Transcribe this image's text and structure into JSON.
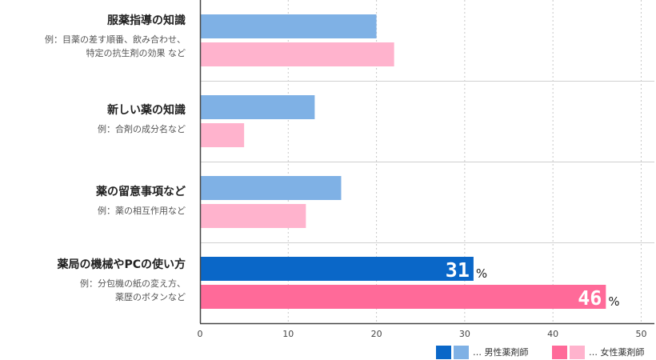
{
  "chart_data": {
    "type": "bar",
    "orientation": "horizontal",
    "categories": [
      {
        "title": "服薬指導の知識",
        "subtitle": "例：目薬の差す順番、飲み合わせ、\n特定の抗生剤の効果 など",
        "male": 20,
        "female": 22,
        "highlight": false
      },
      {
        "title": "新しい薬の知識",
        "subtitle": "例：合剤の成分名など",
        "male": 13,
        "female": 5,
        "highlight": false
      },
      {
        "title": "薬の留意事項など",
        "subtitle": "例：薬の相互作用など",
        "male": 16,
        "female": 12,
        "highlight": false
      },
      {
        "title": "薬局の機械やPCの使い方",
        "subtitle": "例：分包機の紙の変え方、\n薬歴のボタンなど",
        "male": 31,
        "female": 46,
        "highlight": true
      }
    ],
    "series": [
      {
        "name": "男性薬剤師",
        "key": "male"
      },
      {
        "name": "女性薬剤師",
        "key": "female"
      }
    ],
    "x_ticks": [
      0,
      10,
      20,
      30,
      40,
      50
    ],
    "xlim": [
      0,
      51.5
    ],
    "unit": "%",
    "grid": true,
    "legend_position": "bottom-right"
  },
  "colors": {
    "male_light": "#7fb1e5",
    "male_dark": "#0a67c8",
    "female_light": "#ffb3cd",
    "female_dark": "#ff6a99",
    "grid": "#c8c8c8",
    "axis": "#444444",
    "separator": "#d0d0d0"
  },
  "legend": {
    "male_label": "… 男性薬剤師",
    "female_label": "… 女性薬剤師"
  }
}
